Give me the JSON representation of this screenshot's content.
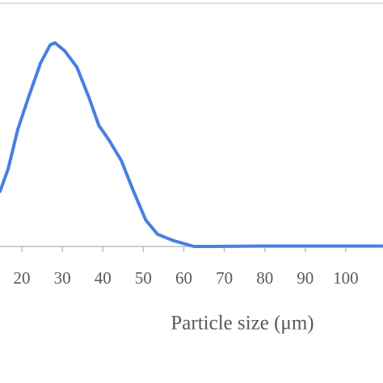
{
  "chart_data": {
    "type": "line",
    "x_label": "Particle size (μm)",
    "x": [
      14.6,
      16.6,
      19,
      21.6,
      24.6,
      27,
      28.2,
      30.6,
      33.6,
      36.6,
      39,
      41.6,
      44.6,
      47.6,
      50.6,
      53.5,
      57.5,
      62.5,
      66.5,
      80,
      95,
      109
    ],
    "series": [
      {
        "color": "#4a7fe0",
        "values": [
          2.7,
          3.8,
          5.75,
          7.3,
          9,
          9.9,
          10,
          9.6,
          8.8,
          7.3,
          5.95,
          5.2,
          4.2,
          2.7,
          1.3,
          0.6,
          0.28,
          0,
          0,
          0.02,
          0.02,
          0.02
        ]
      }
    ],
    "xlim": [
      14.6,
      109.2
    ],
    "xticks": [
      20,
      30,
      40,
      50,
      60,
      70,
      80,
      90,
      100
    ],
    "ylim": [
      0,
      10
    ]
  }
}
